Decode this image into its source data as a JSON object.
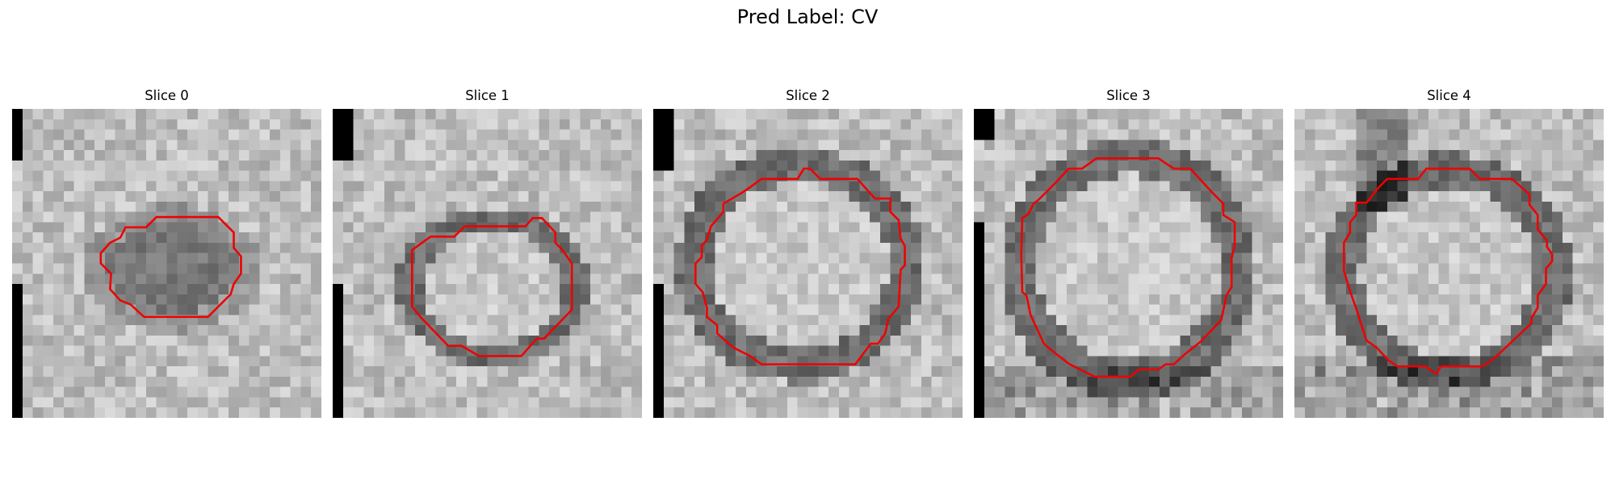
{
  "figure": {
    "title": "Pred Label: CV"
  },
  "slices": [
    {
      "label": "Slice 0",
      "image": "grayscale-microscopy-tile",
      "contour_color": "#ee0000"
    },
    {
      "label": "Slice 1",
      "image": "grayscale-microscopy-tile",
      "contour_color": "#ee0000"
    },
    {
      "label": "Slice 2",
      "image": "grayscale-microscopy-tile",
      "contour_color": "#ee0000"
    },
    {
      "label": "Slice 3",
      "image": "grayscale-microscopy-tile",
      "contour_color": "#ee0000"
    },
    {
      "label": "Slice 4",
      "image": "grayscale-microscopy-tile",
      "contour_color": "#ee0000"
    }
  ]
}
